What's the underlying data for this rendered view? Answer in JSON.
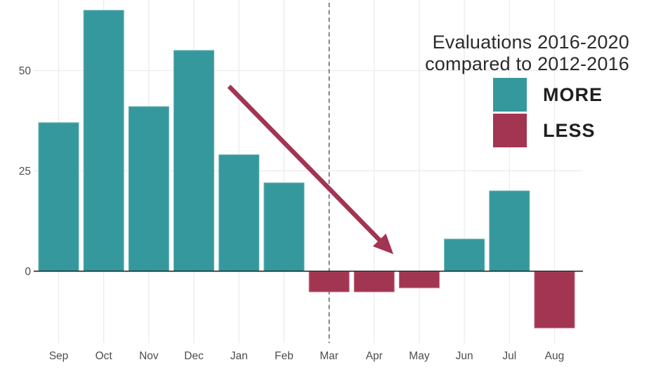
{
  "title": {
    "line1": "Evaluations 2016-2020",
    "line2": "compared to 2012-2016"
  },
  "legend": {
    "items": [
      {
        "label": "MORE",
        "color": "#35989d"
      },
      {
        "label": "LESS",
        "color": "#a23551"
      }
    ]
  },
  "chart_data": {
    "type": "bar",
    "title": "Evaluations 2016-2020 compared to 2012-2016",
    "categories": [
      "Sep",
      "Oct",
      "Nov",
      "Dec",
      "Jan",
      "Feb",
      "Mar",
      "Apr",
      "May",
      "Jun",
      "Jul",
      "Aug"
    ],
    "values": [
      37,
      65,
      41,
      55,
      29,
      22,
      -5,
      -5,
      -4,
      8,
      20,
      -14
    ],
    "xlabel": "",
    "ylabel": "",
    "yticks": [
      0,
      25,
      50
    ],
    "ylim": [
      -18,
      67.5
    ],
    "grid": true,
    "legend_position": "top-right",
    "series_colors": {
      "positive": "#35989d",
      "negative": "#a23551",
      "positive_edge": "#63b1b5",
      "negative_edge": "#c06f88"
    },
    "axis_colors": {
      "tick_label": "#4d4d4d",
      "gridline": "#ececec",
      "zero_line": "#1a1a1a",
      "dashed_line": "#4a4a4a"
    },
    "annotations": [
      {
        "type": "dashed-vline",
        "at_category": "Mar"
      },
      {
        "type": "trend-arrow",
        "direction": "down-right",
        "color": "#a23551"
      }
    ]
  }
}
